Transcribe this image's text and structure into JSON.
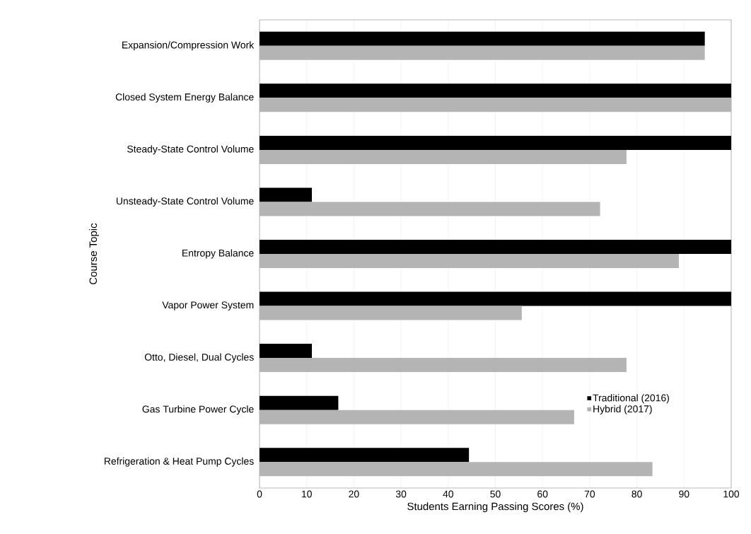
{
  "chart_data": {
    "type": "bar",
    "orientation": "horizontal",
    "xlabel": "Students Earning Passing Scores (%)",
    "ylabel": "Course Topic",
    "categories": [
      "Expansion/Compression Work",
      "Closed System Energy Balance",
      "Steady-State Control Volume",
      "Unsteady-State Control Volume",
      "Entropy Balance",
      "Vapor Power System",
      "Otto, Diesel, Dual Cycles",
      "Gas Turbine Power Cycle",
      "Refrigeration & Heat Pump Cycles"
    ],
    "series": [
      {
        "name": "Traditional (2016)",
        "color": "#000000",
        "values": [
          94.4,
          100,
          100,
          11.1,
          100,
          100,
          11.1,
          16.7,
          44.4
        ]
      },
      {
        "name": "Hybrid (2017)",
        "color": "#b4b4b4",
        "values": [
          94.4,
          100,
          77.8,
          72.2,
          88.9,
          55.6,
          77.8,
          66.7,
          83.3
        ]
      }
    ],
    "xlim": [
      0,
      100
    ],
    "xticks": [
      0,
      10,
      20,
      30,
      40,
      50,
      60,
      70,
      80,
      90,
      100
    ],
    "grid": "x",
    "legend": "bottom right"
  }
}
